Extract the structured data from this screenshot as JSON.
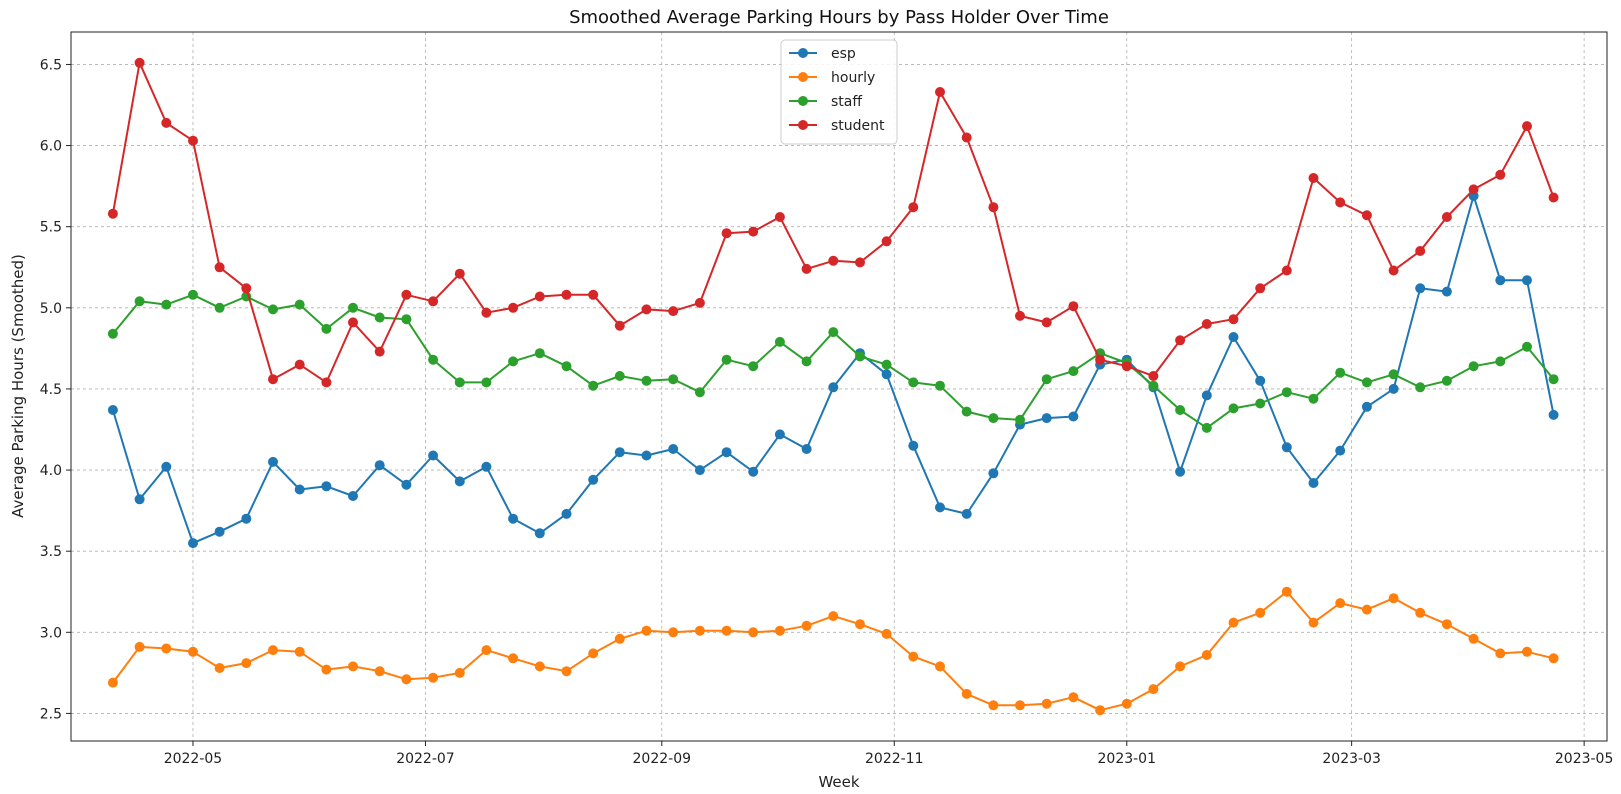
{
  "chart_data": {
    "type": "line",
    "title": "Smoothed Average Parking Hours by Pass Holder Over Time",
    "xlabel": "Week",
    "ylabel": "Average Parking Hours (Smoothed)",
    "x_start": "2022-04-10",
    "x_step_days": 7,
    "x_ticks": [
      "2022-05",
      "2022-07",
      "2022-09",
      "2022-11",
      "2023-01",
      "2023-03",
      "2023-05"
    ],
    "x_tick_dates": [
      "2022-05-01",
      "2022-07-01",
      "2022-09-01",
      "2022-11-01",
      "2023-01-01",
      "2023-03-01",
      "2023-05-01"
    ],
    "xlim": [
      "2022-03-30",
      "2023-05-07"
    ],
    "ylim": [
      2.33,
      6.7
    ],
    "y_ticks": [
      2.5,
      3.0,
      3.5,
      4.0,
      4.5,
      5.0,
      5.5,
      6.0,
      6.5
    ],
    "y_tick_labels": [
      "2.5",
      "3.0",
      "3.5",
      "4.0",
      "4.5",
      "5.0",
      "5.5",
      "6.0",
      "6.5"
    ],
    "grid": true,
    "legend_position": "top-center",
    "series": [
      {
        "name": "esp",
        "color": "#1f77b4",
        "values": [
          4.37,
          3.82,
          4.02,
          3.55,
          3.62,
          3.7,
          4.05,
          3.88,
          3.9,
          3.84,
          4.03,
          3.91,
          4.09,
          3.93,
          4.02,
          3.7,
          3.61,
          3.73,
          3.94,
          4.11,
          4.09,
          4.13,
          4.0,
          4.11,
          3.99,
          4.22,
          4.13,
          4.51,
          4.72,
          4.59,
          4.15,
          3.77,
          3.73,
          3.98,
          4.28,
          4.32,
          4.33,
          4.65,
          4.68,
          4.51,
          3.99,
          4.46,
          4.82,
          4.55,
          4.14,
          3.92,
          4.12,
          4.39,
          4.5,
          5.12,
          5.1,
          5.69,
          5.17,
          5.17,
          4.34
        ]
      },
      {
        "name": "hourly",
        "color": "#ff7f0e",
        "values": [
          2.69,
          2.91,
          2.9,
          2.88,
          2.78,
          2.81,
          2.89,
          2.88,
          2.77,
          2.79,
          2.76,
          2.71,
          2.72,
          2.75,
          2.89,
          2.84,
          2.79,
          2.76,
          2.87,
          2.96,
          3.01,
          3.0,
          3.01,
          3.01,
          3.0,
          3.01,
          3.04,
          3.1,
          3.05,
          2.99,
          2.85,
          2.79,
          2.62,
          2.55,
          2.55,
          2.56,
          2.6,
          2.52,
          2.56,
          2.65,
          2.79,
          2.86,
          3.06,
          3.12,
          3.25,
          3.06,
          3.18,
          3.14,
          3.21,
          3.12,
          3.05,
          2.96,
          2.87,
          2.88,
          2.84
        ]
      },
      {
        "name": "staff",
        "color": "#2ca02c",
        "values": [
          4.84,
          5.04,
          5.02,
          5.08,
          5.0,
          5.07,
          4.99,
          5.02,
          4.87,
          5.0,
          4.94,
          4.93,
          4.68,
          4.54,
          4.54,
          4.67,
          4.72,
          4.64,
          4.52,
          4.58,
          4.55,
          4.56,
          4.48,
          4.68,
          4.64,
          4.79,
          4.67,
          4.85,
          4.7,
          4.65,
          4.54,
          4.52,
          4.36,
          4.32,
          4.31,
          4.56,
          4.61,
          4.72,
          4.66,
          4.52,
          4.37,
          4.26,
          4.38,
          4.41,
          4.48,
          4.44,
          4.6,
          4.54,
          4.59,
          4.51,
          4.55,
          4.64,
          4.67,
          4.76,
          4.56
        ]
      },
      {
        "name": "student",
        "color": "#d62728",
        "values": [
          5.58,
          6.51,
          6.14,
          6.03,
          5.25,
          5.12,
          4.56,
          4.65,
          4.54,
          4.91,
          4.73,
          5.08,
          5.04,
          5.21,
          4.97,
          5.0,
          5.07,
          5.08,
          5.08,
          4.89,
          4.99,
          4.98,
          5.03,
          5.46,
          5.47,
          5.56,
          5.24,
          5.29,
          5.28,
          5.41,
          5.62,
          6.33,
          6.05,
          5.62,
          4.95,
          4.91,
          5.01,
          4.68,
          4.64,
          4.58,
          4.8,
          4.9,
          4.93,
          5.12,
          5.23,
          5.8,
          5.65,
          5.57,
          5.23,
          5.35,
          5.56,
          5.73,
          5.82,
          6.12,
          5.68
        ]
      }
    ]
  }
}
